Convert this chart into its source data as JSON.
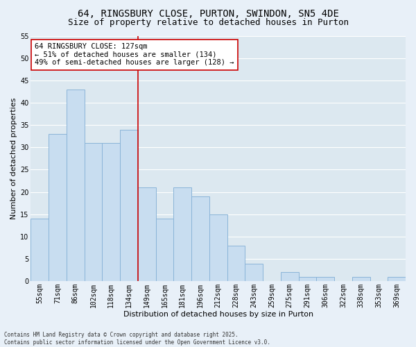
{
  "title1": "64, RINGSBURY CLOSE, PURTON, SWINDON, SN5 4DE",
  "title2": "Size of property relative to detached houses in Purton",
  "xlabel": "Distribution of detached houses by size in Purton",
  "ylabel": "Number of detached properties",
  "categories": [
    "55sqm",
    "71sqm",
    "86sqm",
    "102sqm",
    "118sqm",
    "134sqm",
    "149sqm",
    "165sqm",
    "181sqm",
    "196sqm",
    "212sqm",
    "228sqm",
    "243sqm",
    "259sqm",
    "275sqm",
    "291sqm",
    "306sqm",
    "322sqm",
    "338sqm",
    "353sqm",
    "369sqm"
  ],
  "values": [
    14,
    33,
    43,
    31,
    31,
    34,
    21,
    14,
    21,
    19,
    15,
    8,
    4,
    0,
    2,
    1,
    1,
    0,
    1,
    0,
    1
  ],
  "bar_color": "#c8ddf0",
  "bar_edge_color": "#8ab4d8",
  "bar_width": 1.0,
  "vline_x": 5.5,
  "vline_color": "#cc0000",
  "annotation_text": "64 RINGSBURY CLOSE: 127sqm\n← 51% of detached houses are smaller (134)\n49% of semi-detached houses are larger (128) →",
  "annotation_box_color": "#ffffff",
  "annotation_box_edge": "#cc0000",
  "ylim": [
    0,
    55
  ],
  "yticks": [
    0,
    5,
    10,
    15,
    20,
    25,
    30,
    35,
    40,
    45,
    50,
    55
  ],
  "bg_color": "#dce8f0",
  "fig_bg_color": "#e8f0f8",
  "grid_color": "#ffffff",
  "footer": "Contains HM Land Registry data © Crown copyright and database right 2025.\nContains public sector information licensed under the Open Government Licence v3.0.",
  "title_fontsize": 10,
  "subtitle_fontsize": 9,
  "axis_label_fontsize": 8,
  "tick_fontsize": 7,
  "annotation_fontsize": 7.5,
  "footer_fontsize": 5.5
}
